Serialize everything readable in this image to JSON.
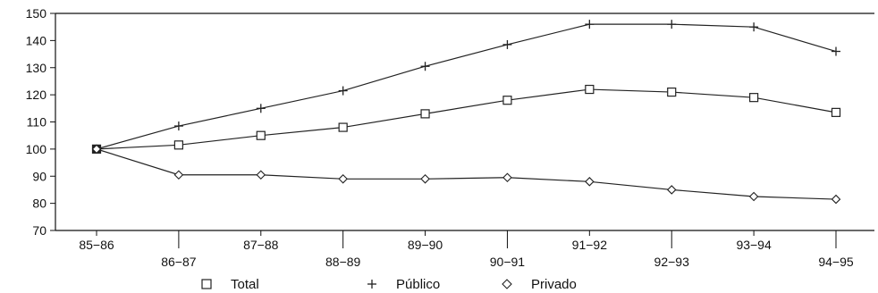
{
  "chart_data": {
    "type": "line",
    "categories": [
      "85-86",
      "86-87",
      "87-88",
      "88-89",
      "89-90",
      "90-91",
      "91-92",
      "92-93",
      "93-94",
      "94-95"
    ],
    "ylim": [
      70,
      150
    ],
    "yticks": [
      70,
      80,
      90,
      100,
      110,
      120,
      130,
      140,
      150
    ],
    "grid": false,
    "legend_position": "bottom",
    "series": [
      {
        "name": "Total",
        "marker": "square",
        "values": [
          100,
          101.5,
          105,
          108,
          113,
          118,
          122,
          121,
          119,
          113.5
        ]
      },
      {
        "name": "Público",
        "marker": "plus",
        "values": [
          100,
          108.5,
          115,
          121.5,
          130.5,
          138.5,
          146,
          146,
          145,
          136
        ]
      },
      {
        "name": "Privado",
        "marker": "diamond",
        "values": [
          100,
          90.5,
          90.5,
          89,
          89,
          89.5,
          88,
          85,
          82.5,
          81.5
        ]
      }
    ],
    "colors": {
      "line": "#222222",
      "axis": "#111111",
      "background": "#ffffff"
    }
  }
}
